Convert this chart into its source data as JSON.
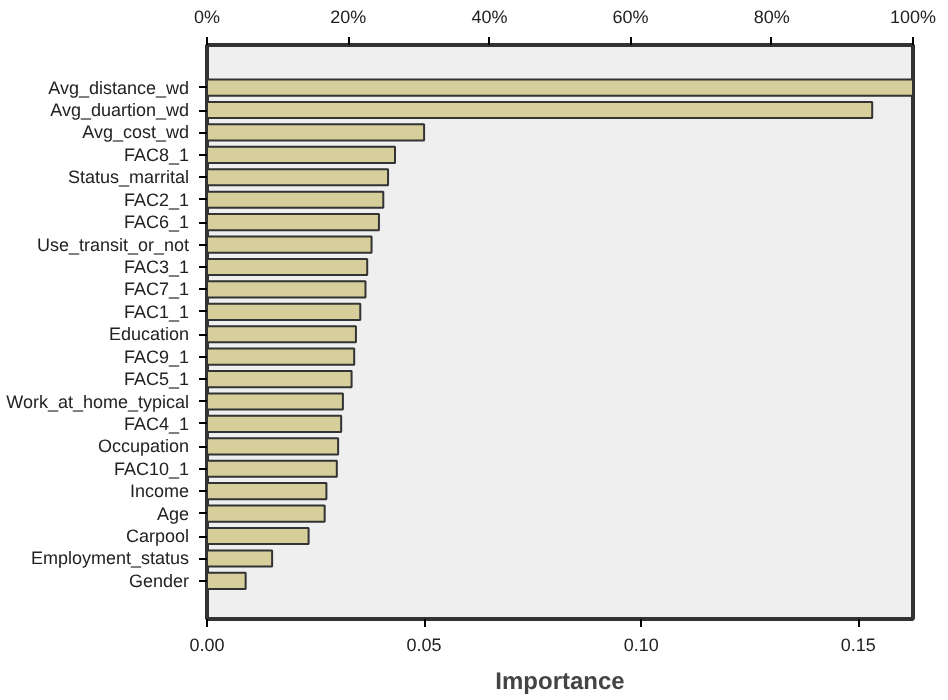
{
  "chart_data": {
    "type": "bar",
    "orientation": "horizontal",
    "xlabel": "Importance",
    "categories": [
      "Avg_distance_wd",
      "Avg_duartion_wd",
      "Avg_cost_wd",
      "FAC8_1",
      "Status_marrital",
      "FAC2_1",
      "FAC6_1",
      "Use_transit_or_not",
      "FAC3_1",
      "FAC7_1",
      "FAC1_1",
      "Education",
      "FAC9_1",
      "FAC5_1",
      "Work_at_home_typical",
      "FAC4_1",
      "Occupation",
      "FAC10_1",
      "Income",
      "Age",
      "Carpool",
      "Employment_status",
      "Gender"
    ],
    "values": [
      0.1626,
      0.1532,
      0.05,
      0.0433,
      0.0417,
      0.0406,
      0.0396,
      0.0379,
      0.0369,
      0.0365,
      0.0353,
      0.0343,
      0.0339,
      0.0333,
      0.0313,
      0.0309,
      0.0302,
      0.0299,
      0.0275,
      0.0271,
      0.0234,
      0.015,
      0.0089
    ],
    "color": "#d6cf9c",
    "xlim": [
      0,
      0.1626
    ],
    "xticks": [
      {
        "value": 0,
        "label": "0.00"
      },
      {
        "value": 0.05,
        "label": "0.05"
      },
      {
        "value": 0.1,
        "label": "0.10"
      },
      {
        "value": 0.15,
        "label": "0.15"
      }
    ],
    "x2lim": [
      0,
      100
    ],
    "x2ticks": [
      {
        "value": 0,
        "label": "0%"
      },
      {
        "value": 20,
        "label": "20%"
      },
      {
        "value": 40,
        "label": "40%"
      },
      {
        "value": 60,
        "label": "60%"
      },
      {
        "value": 80,
        "label": "80%"
      },
      {
        "value": 100,
        "label": "100%"
      }
    ],
    "grid": false
  }
}
